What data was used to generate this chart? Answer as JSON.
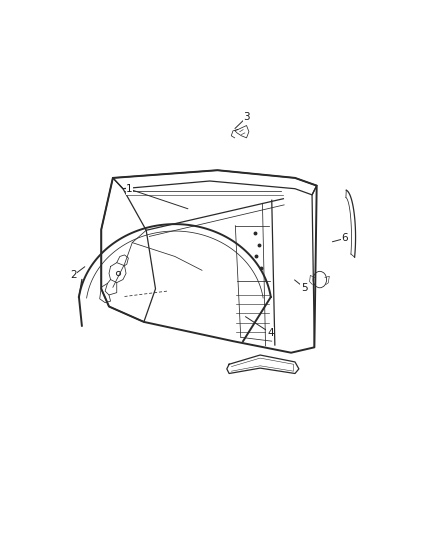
{
  "bg_color": "#ffffff",
  "line_color": "#2a2a2a",
  "label_color": "#1a1a1a",
  "fig_width": 4.38,
  "fig_height": 5.33,
  "dpi": 100,
  "lw_main": 1.4,
  "lw_med": 0.9,
  "lw_thin": 0.55,
  "callouts": {
    "1": {
      "lpos": [
        0.22,
        0.695
      ],
      "tpos": [
        0.4,
        0.645
      ]
    },
    "2": {
      "lpos": [
        0.055,
        0.485
      ],
      "tpos": [
        0.095,
        0.51
      ]
    },
    "3": {
      "lpos": [
        0.565,
        0.87
      ],
      "tpos": [
        0.525,
        0.838
      ]
    },
    "4": {
      "lpos": [
        0.635,
        0.345
      ],
      "tpos": [
        0.555,
        0.388
      ]
    },
    "5": {
      "lpos": [
        0.735,
        0.455
      ],
      "tpos": [
        0.7,
        0.478
      ]
    },
    "6": {
      "lpos": [
        0.855,
        0.575
      ],
      "tpos": [
        0.81,
        0.565
      ]
    }
  }
}
